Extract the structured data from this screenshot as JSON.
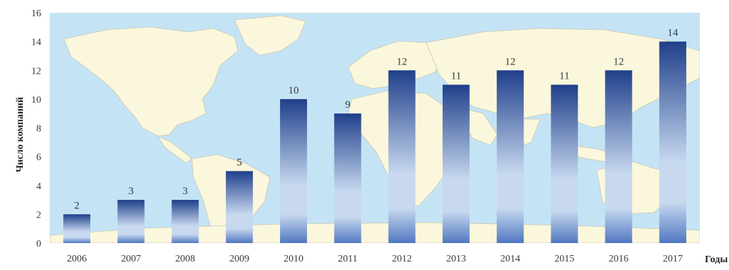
{
  "chart_data": {
    "type": "bar",
    "categories": [
      "2006",
      "2007",
      "2008",
      "2009",
      "2010",
      "2011",
      "2012",
      "2013",
      "2014",
      "2015",
      "2016",
      "2017"
    ],
    "values": [
      2,
      3,
      3,
      5,
      10,
      9,
      12,
      11,
      12,
      11,
      12,
      14
    ],
    "title": "",
    "xlabel": "Годы",
    "ylabel": "Число компаний",
    "ylim": [
      0,
      16
    ],
    "yticks": [
      0,
      2,
      4,
      6,
      8,
      10,
      12,
      14,
      16
    ],
    "grid": false,
    "legend": "none",
    "data_labels": true,
    "background": "world-map",
    "colors": {
      "bar_top": "#1f3f8a",
      "bar_mid": "#c7d8ef",
      "bar_bottom": "#5077c0",
      "ocean": "#c4e4f5",
      "land": "#fbf7dc"
    }
  }
}
